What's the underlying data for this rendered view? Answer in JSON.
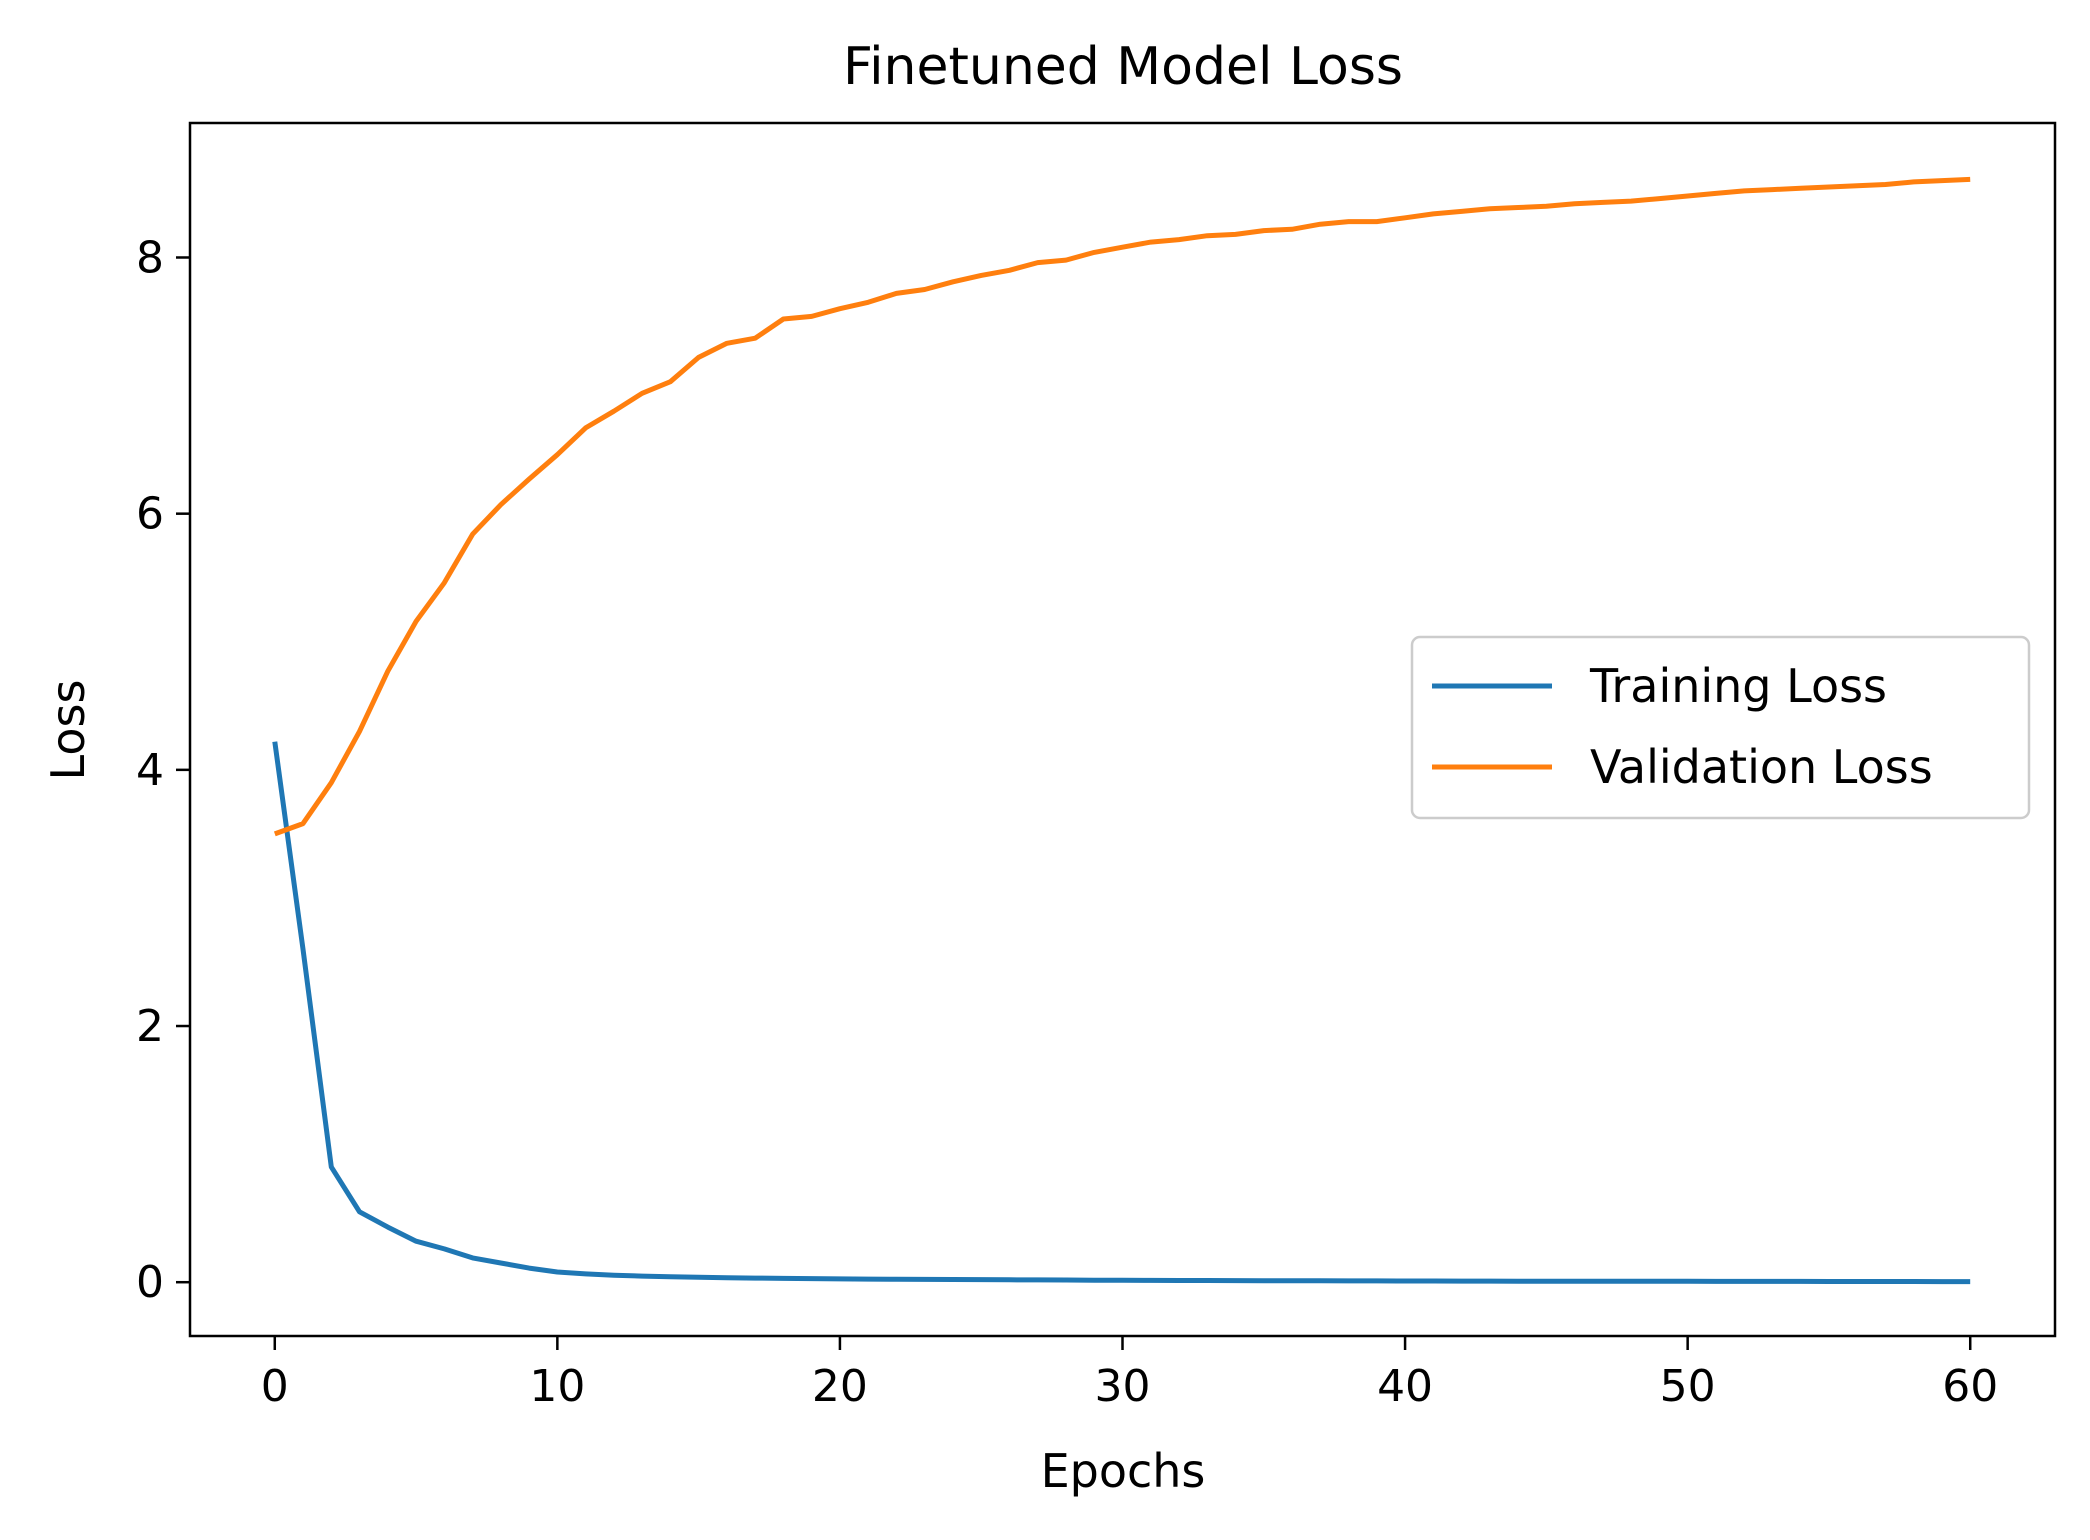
{
  "chart_data": {
    "type": "line",
    "title": "Finetuned Model Loss",
    "xlabel": "Epochs",
    "ylabel": "Loss",
    "xlim": [
      -3,
      63
    ],
    "ylim": [
      -0.42,
      9.05
    ],
    "xticks": [
      0,
      10,
      20,
      30,
      40,
      50,
      60
    ],
    "yticks": [
      0,
      2,
      4,
      6,
      8
    ],
    "grid": false,
    "legend_position": "center-right",
    "x": [
      0,
      1,
      2,
      3,
      4,
      5,
      6,
      7,
      8,
      9,
      10,
      11,
      12,
      13,
      14,
      15,
      16,
      17,
      18,
      19,
      20,
      21,
      22,
      23,
      24,
      25,
      26,
      27,
      28,
      29,
      30,
      31,
      32,
      33,
      34,
      35,
      36,
      37,
      38,
      39,
      40,
      41,
      42,
      43,
      44,
      45,
      46,
      47,
      48,
      49,
      50,
      51,
      52,
      53,
      54,
      55,
      56,
      57,
      58,
      59,
      60
    ],
    "series": [
      {
        "name": "Training Loss",
        "color": "#1f77b4",
        "values": [
          4.22,
          2.6,
          0.9,
          0.55,
          0.43,
          0.32,
          0.26,
          0.19,
          0.15,
          0.11,
          0.08,
          0.065,
          0.055,
          0.048,
          0.043,
          0.039,
          0.035,
          0.032,
          0.03,
          0.028,
          0.026,
          0.024,
          0.023,
          0.022,
          0.021,
          0.02,
          0.019,
          0.018,
          0.017,
          0.016,
          0.015,
          0.014,
          0.0135,
          0.013,
          0.0125,
          0.012,
          0.0115,
          0.011,
          0.0105,
          0.01,
          0.0095,
          0.009,
          0.0088,
          0.0085,
          0.0082,
          0.008,
          0.0078,
          0.0075,
          0.0073,
          0.007,
          0.0068,
          0.0066,
          0.0064,
          0.0062,
          0.006,
          0.0058,
          0.0056,
          0.0054,
          0.0052,
          0.005,
          0.0048
        ]
      },
      {
        "name": "Validation Loss",
        "color": "#ff7f0e",
        "values": [
          3.5,
          3.58,
          3.9,
          4.3,
          4.77,
          5.16,
          5.46,
          5.84,
          6.07,
          6.27,
          6.46,
          6.67,
          6.8,
          6.94,
          7.03,
          7.22,
          7.33,
          7.37,
          7.52,
          7.54,
          7.6,
          7.65,
          7.72,
          7.75,
          7.81,
          7.86,
          7.9,
          7.96,
          7.98,
          8.04,
          8.08,
          8.12,
          8.14,
          8.17,
          8.18,
          8.21,
          8.22,
          8.26,
          8.28,
          8.28,
          8.31,
          8.34,
          8.36,
          8.38,
          8.39,
          8.4,
          8.42,
          8.43,
          8.44,
          8.46,
          8.48,
          8.5,
          8.52,
          8.53,
          8.54,
          8.55,
          8.56,
          8.57,
          8.59,
          8.6,
          8.61
        ]
      }
    ]
  }
}
